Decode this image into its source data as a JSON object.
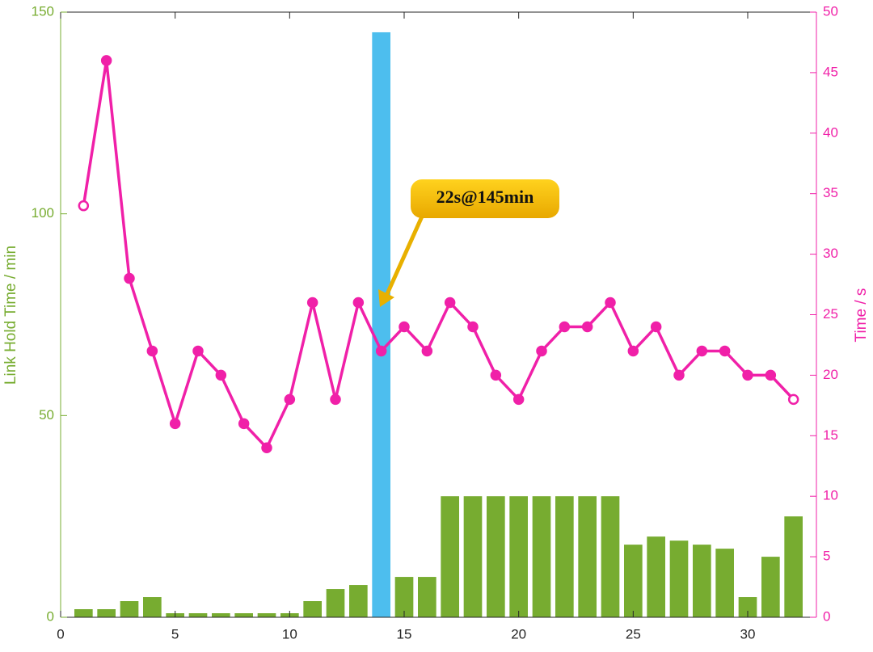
{
  "chart_data": {
    "type": "combo",
    "ylabel": "Link Hold Time / min",
    "y2label": "Time / s",
    "annotation": "22s@145min",
    "x": [
      1,
      2,
      3,
      4,
      5,
      6,
      7,
      8,
      9,
      10,
      11,
      12,
      13,
      14,
      15,
      16,
      17,
      18,
      19,
      20,
      21,
      22,
      23,
      24,
      25,
      26,
      27,
      28,
      29,
      30,
      31,
      32
    ],
    "xlim": [
      0,
      33
    ],
    "xticks": [
      0,
      5,
      10,
      15,
      20,
      25,
      30
    ],
    "ylim": [
      0,
      150
    ],
    "yticks": [
      0,
      50,
      100,
      150
    ],
    "y2lim": [
      0,
      50
    ],
    "y2ticks": [
      0,
      5,
      10,
      15,
      20,
      25,
      30,
      35,
      40,
      45,
      50
    ],
    "series": [
      {
        "type": "bar",
        "color": "#77ac30",
        "highlight_color": "#4dbeee",
        "highlight_index": 13,
        "values": [
          2,
          2,
          4,
          5,
          1,
          1,
          1,
          1,
          1,
          1,
          4,
          7,
          8,
          145,
          10,
          10,
          30,
          30,
          30,
          30,
          30,
          30,
          30,
          30,
          18,
          20,
          19,
          18,
          17,
          5,
          15,
          25
        ]
      },
      {
        "type": "line",
        "axis": "y2",
        "color": "#f020a8",
        "values": [
          34,
          46,
          28,
          22,
          16,
          22,
          20,
          16,
          14,
          18,
          26,
          18,
          26,
          22,
          24,
          22,
          26,
          24,
          20,
          18,
          22,
          24,
          24,
          26,
          22,
          24,
          20,
          22,
          22,
          20,
          20,
          18
        ]
      }
    ]
  }
}
